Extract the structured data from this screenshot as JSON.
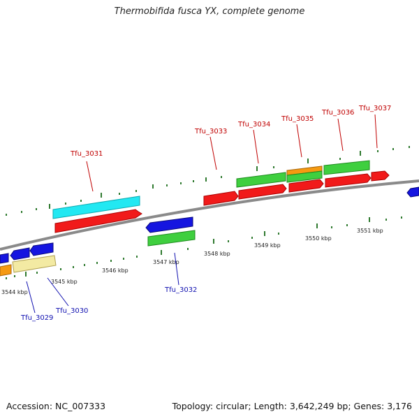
{
  "title": "Thermobifida fusca YX, complete genome",
  "footer": {
    "accession": "Accession: NC_007333",
    "topology": "Topology: circular; Length: 3,642,249 bp; Genes: 3,176"
  },
  "colors": {
    "backbone": "#8a8a8a",
    "tick": "#2f7a2f",
    "top_label": "#c00000",
    "bottom_label": "#1010b0"
  },
  "kbp_labels": [
    "3544 kbp",
    "3545 kbp",
    "3546 kbp",
    "3547 kbp",
    "3548 kbp",
    "3549 kbp",
    "3550 kbp",
    "3551 kbp"
  ],
  "top_gene_labels": [
    "Tfu_3031",
    "Tfu_3033",
    "Tfu_3034",
    "Tfu_3035",
    "Tfu_3036",
    "Tfu_3037"
  ],
  "bottom_gene_labels": [
    "Tfu_3029",
    "Tfu_3030",
    "Tfu_3032"
  ]
}
